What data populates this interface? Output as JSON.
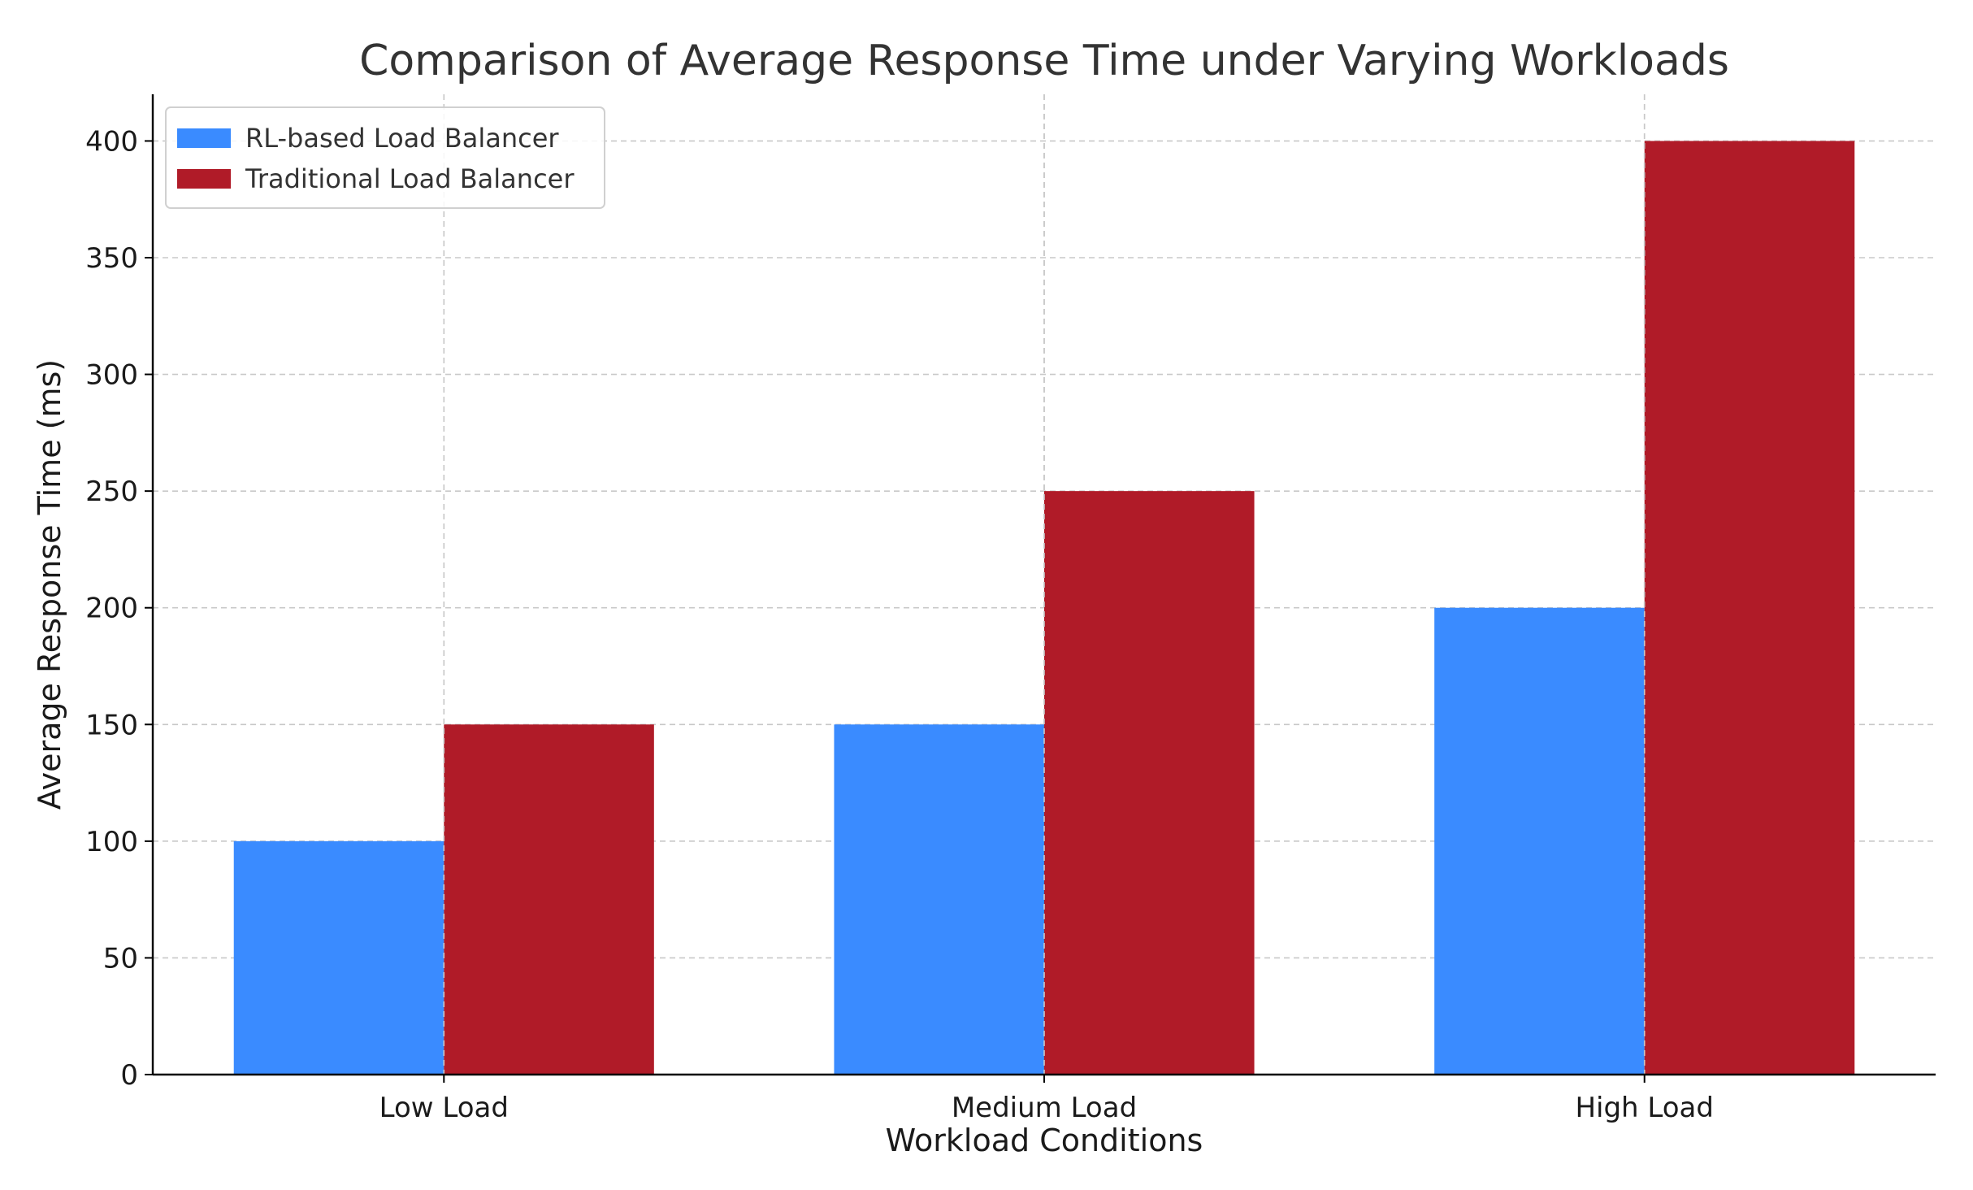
{
  "chart_data": {
    "type": "bar",
    "title": "Comparison of Average Response Time under Varying Workloads",
    "xlabel": "Workload Conditions",
    "ylabel": "Average Response Time (ms)",
    "categories": [
      "Low Load",
      "Medium Load",
      "High Load"
    ],
    "series": [
      {
        "name": "RL-based Load Balancer",
        "values": [
          100,
          150,
          200
        ],
        "color": "#3a8bff"
      },
      {
        "name": "Traditional Load Balancer",
        "values": [
          150,
          250,
          400
        ],
        "color": "#b01b28"
      }
    ],
    "ylim": [
      0,
      420
    ],
    "yticks": [
      0,
      50,
      100,
      150,
      200,
      250,
      300,
      350,
      400
    ],
    "grid": true,
    "legend_position": "top-left"
  }
}
